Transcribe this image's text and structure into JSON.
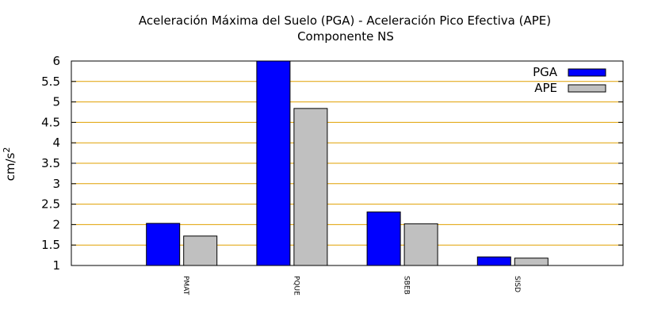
{
  "chart_data": {
    "type": "bar",
    "title": "Aceleración Máxima del Suelo (PGA) -  Aceleración Pico Efectiva (APE)",
    "subtitle": "Componente NS",
    "ylabel": "cm/s",
    "ylabel_superscript": "2",
    "xlabel": "",
    "ylim": [
      1,
      6
    ],
    "yticks": [
      "1",
      "1.5",
      "2",
      "2.5",
      "3",
      "3.5",
      "4",
      "4.5",
      "5",
      "5.5",
      "6"
    ],
    "categories": [
      "PMAT",
      "PQUE",
      "SBEB",
      "SISD"
    ],
    "series": [
      {
        "name": "PGA",
        "values": [
          2.03,
          6.0,
          2.31,
          1.21
        ],
        "color": "#0000ff"
      },
      {
        "name": "APE",
        "values": [
          1.72,
          4.84,
          2.02,
          1.18
        ],
        "color": "#c0c0c0"
      }
    ],
    "grid": "horizontal",
    "grid_color": "#e0a000",
    "legend_position": "top-right"
  }
}
